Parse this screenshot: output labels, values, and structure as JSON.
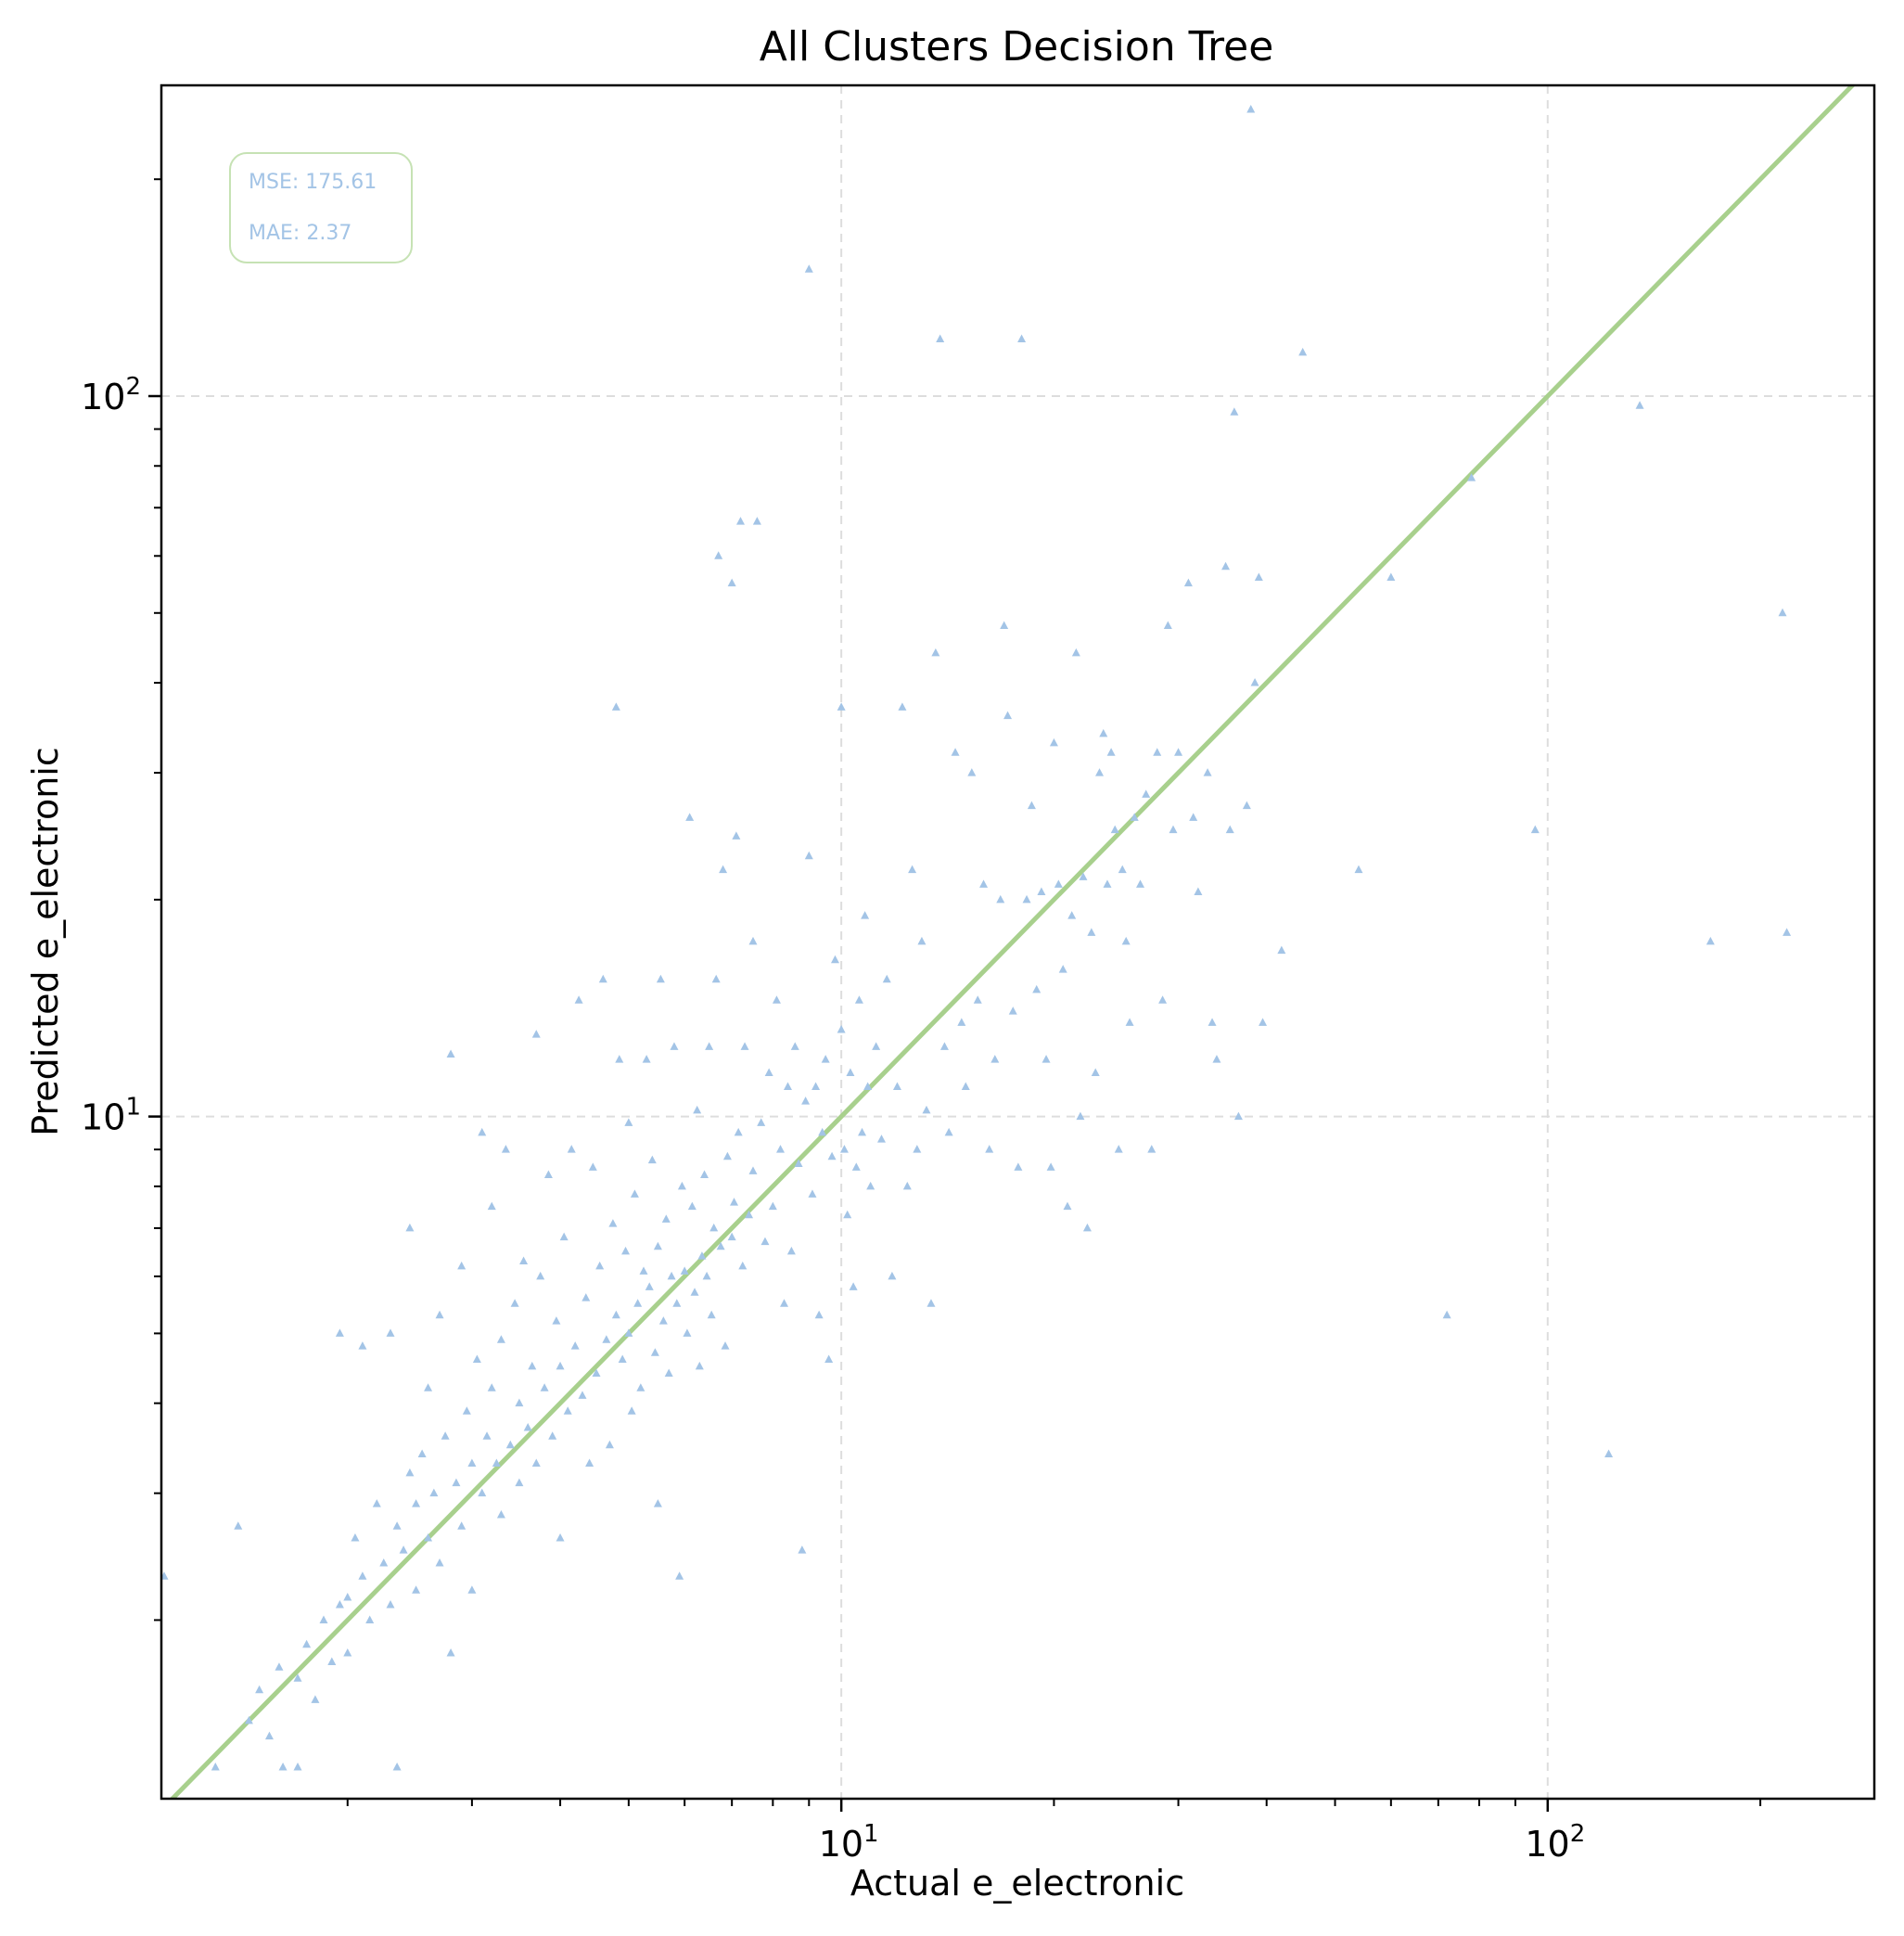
{
  "chart_data": {
    "type": "scatter",
    "title": "All Clusters Decision Tree",
    "xlabel": "Actual e_electronic",
    "ylabel": "Predicted e_electronic",
    "xscale": "log",
    "yscale": "log",
    "xlim": [
      1.09,
      290
    ],
    "ylim": [
      1.13,
      270
    ],
    "x_ticks": [
      {
        "value": 10,
        "base": "10",
        "exp": "1"
      },
      {
        "value": 100,
        "base": "10",
        "exp": "2"
      }
    ],
    "y_ticks": [
      {
        "value": 10,
        "base": "10",
        "exp": "1"
      },
      {
        "value": 100,
        "base": "10",
        "exp": "2"
      }
    ],
    "grid": true,
    "marker": "triangle",
    "point_color": "#a3c4e6",
    "line_color": "#a8d08d",
    "reference_line": "y = x",
    "metrics": {
      "mse": "MSE: 175.61",
      "mae": "MAE: 2.37"
    },
    "series": [
      {
        "values": [
          [
            1.1,
            2.3
          ],
          [
            1.3,
            1.25
          ],
          [
            1.4,
            2.7
          ],
          [
            1.45,
            1.45
          ],
          [
            1.5,
            1.6
          ],
          [
            1.55,
            1.38
          ],
          [
            1.6,
            1.72
          ],
          [
            1.62,
            1.25
          ],
          [
            1.7,
            1.66
          ],
          [
            1.7,
            1.25
          ],
          [
            1.75,
            1.85
          ],
          [
            1.8,
            1.55
          ],
          [
            1.85,
            2.0
          ],
          [
            1.9,
            1.75
          ],
          [
            1.95,
            2.1
          ],
          [
            1.95,
            5.0
          ],
          [
            2.0,
            2.15
          ],
          [
            2.0,
            1.8
          ],
          [
            2.05,
            2.6
          ],
          [
            2.1,
            2.3
          ],
          [
            2.1,
            4.8
          ],
          [
            2.15,
            2.0
          ],
          [
            2.2,
            2.9
          ],
          [
            2.25,
            2.4
          ],
          [
            2.3,
            2.1
          ],
          [
            2.3,
            5.0
          ],
          [
            2.35,
            2.7
          ],
          [
            2.35,
            1.25
          ],
          [
            2.4,
            2.5
          ],
          [
            2.45,
            3.2
          ],
          [
            2.45,
            7.0
          ],
          [
            2.5,
            2.9
          ],
          [
            2.5,
            2.2
          ],
          [
            2.55,
            3.4
          ],
          [
            2.6,
            2.6
          ],
          [
            2.6,
            4.2
          ],
          [
            2.65,
            3.0
          ],
          [
            2.7,
            2.4
          ],
          [
            2.7,
            5.3
          ],
          [
            2.75,
            3.6
          ],
          [
            2.8,
            1.8
          ],
          [
            2.8,
            12.2
          ],
          [
            2.85,
            3.1
          ],
          [
            2.9,
            2.7
          ],
          [
            2.9,
            6.2
          ],
          [
            2.95,
            3.9
          ],
          [
            3.0,
            3.3
          ],
          [
            3.0,
            2.2
          ],
          [
            3.05,
            4.6
          ],
          [
            3.1,
            9.5
          ],
          [
            3.1,
            3.0
          ],
          [
            3.15,
            3.6
          ],
          [
            3.2,
            4.2
          ],
          [
            3.2,
            7.5
          ],
          [
            3.25,
            3.3
          ],
          [
            3.3,
            2.8
          ],
          [
            3.3,
            4.9
          ],
          [
            3.35,
            9.0
          ],
          [
            3.4,
            3.5
          ],
          [
            3.45,
            5.5
          ],
          [
            3.5,
            4.0
          ],
          [
            3.5,
            3.1
          ],
          [
            3.55,
            6.3
          ],
          [
            3.6,
            3.7
          ],
          [
            3.65,
            4.5
          ],
          [
            3.7,
            13.0
          ],
          [
            3.7,
            3.3
          ],
          [
            3.75,
            6.0
          ],
          [
            3.8,
            4.2
          ],
          [
            3.85,
            8.3
          ],
          [
            3.9,
            3.6
          ],
          [
            3.95,
            5.2
          ],
          [
            4.0,
            4.5
          ],
          [
            4.0,
            2.6
          ],
          [
            4.05,
            6.8
          ],
          [
            4.1,
            3.9
          ],
          [
            4.15,
            9.0
          ],
          [
            4.2,
            4.8
          ],
          [
            4.25,
            14.5
          ],
          [
            4.3,
            4.1
          ],
          [
            4.35,
            5.6
          ],
          [
            4.4,
            3.3
          ],
          [
            4.45,
            8.5
          ],
          [
            4.5,
            4.4
          ],
          [
            4.55,
            6.2
          ],
          [
            4.6,
            15.5
          ],
          [
            4.65,
            4.9
          ],
          [
            4.7,
            3.5
          ],
          [
            4.75,
            7.1
          ],
          [
            4.8,
            5.3
          ],
          [
            4.8,
            37.0
          ],
          [
            4.85,
            12.0
          ],
          [
            4.9,
            4.6
          ],
          [
            4.95,
            6.5
          ],
          [
            5.0,
            9.8
          ],
          [
            5.0,
            5.0
          ],
          [
            5.05,
            3.9
          ],
          [
            5.1,
            7.8
          ],
          [
            5.15,
            5.5
          ],
          [
            5.2,
            4.2
          ],
          [
            5.25,
            6.1
          ],
          [
            5.3,
            12.0
          ],
          [
            5.35,
            5.8
          ],
          [
            5.4,
            8.7
          ],
          [
            5.45,
            4.7
          ],
          [
            5.5,
            6.6
          ],
          [
            5.5,
            2.9
          ],
          [
            5.55,
            15.5
          ],
          [
            5.6,
            5.2
          ],
          [
            5.65,
            7.2
          ],
          [
            5.7,
            4.4
          ],
          [
            5.75,
            6.0
          ],
          [
            5.8,
            12.5
          ],
          [
            5.85,
            5.5
          ],
          [
            5.9,
            2.3
          ],
          [
            5.95,
            8.0
          ],
          [
            6.0,
            6.1
          ],
          [
            6.05,
            5.0
          ],
          [
            6.1,
            26.0
          ],
          [
            6.15,
            7.5
          ],
          [
            6.2,
            5.7
          ],
          [
            6.25,
            10.2
          ],
          [
            6.3,
            4.5
          ],
          [
            6.35,
            6.4
          ],
          [
            6.4,
            8.3
          ],
          [
            6.45,
            6.0
          ],
          [
            6.5,
            12.5
          ],
          [
            6.55,
            5.3
          ],
          [
            6.6,
            7.0
          ],
          [
            6.65,
            15.5
          ],
          [
            6.7,
            60.0
          ],
          [
            6.75,
            6.6
          ],
          [
            6.8,
            22.0
          ],
          [
            6.85,
            4.8
          ],
          [
            6.9,
            8.8
          ],
          [
            7.0,
            55.0
          ],
          [
            7.0,
            6.8
          ],
          [
            7.05,
            7.6
          ],
          [
            7.1,
            24.5
          ],
          [
            7.15,
            9.5
          ],
          [
            7.2,
            67.0
          ],
          [
            7.25,
            6.2
          ],
          [
            7.3,
            12.5
          ],
          [
            7.4,
            7.3
          ],
          [
            7.5,
            17.5
          ],
          [
            7.5,
            8.4
          ],
          [
            7.6,
            67.0
          ],
          [
            7.7,
            9.8
          ],
          [
            7.8,
            6.7
          ],
          [
            7.9,
            11.5
          ],
          [
            8.0,
            7.5
          ],
          [
            8.1,
            14.5
          ],
          [
            8.2,
            9.0
          ],
          [
            8.3,
            5.5
          ],
          [
            8.4,
            11.0
          ],
          [
            8.5,
            6.5
          ],
          [
            8.6,
            12.5
          ],
          [
            8.7,
            8.6
          ],
          [
            8.8,
            2.5
          ],
          [
            8.9,
            10.5
          ],
          [
            9.0,
            150.0
          ],
          [
            9.0,
            23.0
          ],
          [
            9.1,
            7.8
          ],
          [
            9.2,
            11.0
          ],
          [
            9.3,
            5.3
          ],
          [
            9.4,
            9.5
          ],
          [
            9.5,
            12.0
          ],
          [
            9.6,
            4.6
          ],
          [
            9.7,
            8.8
          ],
          [
            9.8,
            16.5
          ],
          [
            10.0,
            37.0
          ],
          [
            10.0,
            13.2
          ],
          [
            10.1,
            9.0
          ],
          [
            10.2,
            7.3
          ],
          [
            10.3,
            11.5
          ],
          [
            10.4,
            5.8
          ],
          [
            10.5,
            8.5
          ],
          [
            10.6,
            14.5
          ],
          [
            10.7,
            9.5
          ],
          [
            10.8,
            19.0
          ],
          [
            10.9,
            11.0
          ],
          [
            11.0,
            8.0
          ],
          [
            11.2,
            12.5
          ],
          [
            11.4,
            9.3
          ],
          [
            11.6,
            15.5
          ],
          [
            11.8,
            6.0
          ],
          [
            12.0,
            11.0
          ],
          [
            12.2,
            37.0
          ],
          [
            12.4,
            8.0
          ],
          [
            12.6,
            22.0
          ],
          [
            12.8,
            9.0
          ],
          [
            13.0,
            17.5
          ],
          [
            13.2,
            10.2
          ],
          [
            13.4,
            5.5
          ],
          [
            13.6,
            44.0
          ],
          [
            13.8,
            120.0
          ],
          [
            14.0,
            12.5
          ],
          [
            14.2,
            9.5
          ],
          [
            14.5,
            32.0
          ],
          [
            14.8,
            13.5
          ],
          [
            15.0,
            11.0
          ],
          [
            15.3,
            30.0
          ],
          [
            15.6,
            14.5
          ],
          [
            15.9,
            21.0
          ],
          [
            16.2,
            9.0
          ],
          [
            16.5,
            12.0
          ],
          [
            16.8,
            20.0
          ],
          [
            17.0,
            48.0
          ],
          [
            17.2,
            36.0
          ],
          [
            17.5,
            14.0
          ],
          [
            17.8,
            8.5
          ],
          [
            18.0,
            120.0
          ],
          [
            18.3,
            20.0
          ],
          [
            18.6,
            27.0
          ],
          [
            18.9,
            15.0
          ],
          [
            19.2,
            20.5
          ],
          [
            19.5,
            12.0
          ],
          [
            19.8,
            8.5
          ],
          [
            20.0,
            33.0
          ],
          [
            20.3,
            21.0
          ],
          [
            20.6,
            16.0
          ],
          [
            20.9,
            7.5
          ],
          [
            21.2,
            19.0
          ],
          [
            21.5,
            44.0
          ],
          [
            21.8,
            10.0
          ],
          [
            22.0,
            21.5
          ],
          [
            22.3,
            7.0
          ],
          [
            22.6,
            18.0
          ],
          [
            22.9,
            11.5
          ],
          [
            23.2,
            30.0
          ],
          [
            23.5,
            34.0
          ],
          [
            23.8,
            21.0
          ],
          [
            24.1,
            32.0
          ],
          [
            24.4,
            25.0
          ],
          [
            24.7,
            9.0
          ],
          [
            25.0,
            22.0
          ],
          [
            25.3,
            17.5
          ],
          [
            25.6,
            13.5
          ],
          [
            26.0,
            26.0
          ],
          [
            26.5,
            21.0
          ],
          [
            27.0,
            28.0
          ],
          [
            27.5,
            9.0
          ],
          [
            28.0,
            32.0
          ],
          [
            28.5,
            14.5
          ],
          [
            29.0,
            48.0
          ],
          [
            29.5,
            25.0
          ],
          [
            30.0,
            32.0
          ],
          [
            31.0,
            55.0
          ],
          [
            31.5,
            26.0
          ],
          [
            32.0,
            20.5
          ],
          [
            33.0,
            30.0
          ],
          [
            33.5,
            13.5
          ],
          [
            34.0,
            12.0
          ],
          [
            35.0,
            58.0
          ],
          [
            35.5,
            25.0
          ],
          [
            36.0,
            95.0
          ],
          [
            36.5,
            10.0
          ],
          [
            37.5,
            27.0
          ],
          [
            38.0,
            250.0
          ],
          [
            38.5,
            40.0
          ],
          [
            39.0,
            56.0
          ],
          [
            39.5,
            13.5
          ],
          [
            42.0,
            17.0
          ],
          [
            45.0,
            115.0
          ],
          [
            54.0,
            22.0
          ],
          [
            60.0,
            56.0
          ],
          [
            72.0,
            5.3
          ],
          [
            78.0,
            77.0
          ],
          [
            96.0,
            25.0
          ],
          [
            122.0,
            3.4
          ],
          [
            135.0,
            97.0
          ],
          [
            170.0,
            17.5
          ],
          [
            215.0,
            50.0
          ],
          [
            218.0,
            18.0
          ]
        ]
      }
    ]
  }
}
